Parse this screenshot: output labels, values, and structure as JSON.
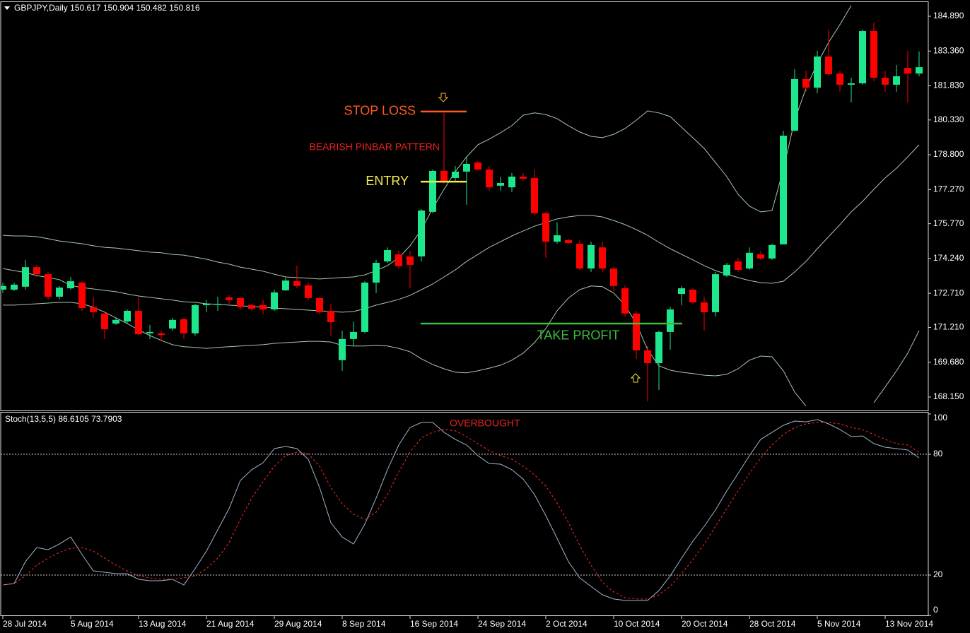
{
  "chart_data": [
    {
      "type": "candlestick",
      "title": "GBPJPY,Daily  150.617 150.904 150.482 150.816",
      "categories": [
        "28 Jul 2014",
        null,
        null,
        null,
        null,
        null,
        "5 Aug 2014",
        null,
        null,
        null,
        null,
        null,
        "13 Aug 2014",
        null,
        null,
        null,
        null,
        null,
        "21 Aug 2014",
        null,
        null,
        null,
        null,
        null,
        "29 Aug 2014",
        null,
        null,
        null,
        null,
        null,
        "8 Sep 2014",
        null,
        null,
        null,
        null,
        null,
        "16 Sep 2014",
        null,
        null,
        null,
        null,
        null,
        "24 Sep 2014",
        null,
        null,
        null,
        null,
        null,
        "2 Oct 2014",
        null,
        null,
        null,
        null,
        null,
        "10 Oct 2014",
        null,
        null,
        null,
        null,
        null,
        "20 Oct 2014",
        null,
        null,
        null,
        null,
        null,
        "28 Oct 2014",
        null,
        null,
        null,
        null,
        null,
        "5 Nov 2014",
        null,
        null,
        null,
        null,
        null,
        "13 Nov 2014",
        null,
        null,
        null
      ],
      "up_color": "#1de68c",
      "down_color": "#ff0000",
      "ohlc": [
        [
          172.87,
          173.18,
          172.72,
          173.03
        ],
        [
          172.87,
          173.18,
          172.81,
          173.09
        ],
        [
          173.0,
          174.18,
          172.87,
          173.86
        ],
        [
          173.86,
          173.96,
          173.43,
          173.55
        ],
        [
          173.55,
          173.65,
          172.44,
          172.56
        ],
        [
          172.56,
          173.03,
          172.44,
          172.96
        ],
        [
          172.93,
          173.43,
          172.87,
          173.24
        ],
        [
          173.18,
          173.24,
          171.94,
          172.06
        ],
        [
          172.1,
          172.56,
          171.63,
          171.88
        ],
        [
          171.82,
          171.94,
          170.7,
          171.13
        ],
        [
          171.38,
          171.63,
          171.32,
          171.54
        ],
        [
          171.47,
          172.0,
          171.38,
          171.94
        ],
        [
          171.94,
          172.56,
          170.85,
          170.91
        ],
        [
          170.95,
          171.32,
          170.7,
          171.01
        ],
        [
          170.95,
          171.07,
          170.6,
          170.88
        ],
        [
          171.16,
          171.63,
          171.07,
          171.54
        ],
        [
          171.57,
          171.63,
          170.7,
          170.95
        ],
        [
          170.95,
          172.25,
          170.85,
          172.19
        ],
        [
          172.19,
          172.41,
          171.88,
          172.25
        ],
        [
          172.25,
          172.56,
          171.94,
          172.25
        ],
        [
          172.53,
          172.62,
          172.25,
          172.41
        ],
        [
          172.5,
          172.56,
          172.0,
          172.1
        ],
        [
          172.19,
          172.25,
          171.94,
          172.03
        ],
        [
          172.19,
          172.41,
          171.78,
          172.0
        ],
        [
          172.0,
          172.87,
          171.94,
          172.75
        ],
        [
          172.84,
          173.4,
          172.81,
          173.27
        ],
        [
          173.24,
          173.93,
          172.93,
          173.03
        ],
        [
          173.06,
          173.18,
          172.41,
          172.5
        ],
        [
          172.5,
          172.56,
          171.78,
          171.88
        ],
        [
          171.94,
          172.25,
          170.85,
          171.44
        ],
        [
          169.77,
          171.07,
          169.3,
          170.7
        ],
        [
          170.7,
          171.47,
          170.39,
          171.01
        ],
        [
          171.01,
          173.24,
          170.95,
          173.18
        ],
        [
          173.18,
          174.18,
          172.72,
          174.05
        ],
        [
          174.11,
          174.73,
          174.05,
          174.61
        ],
        [
          174.42,
          174.58,
          173.8,
          173.9
        ],
        [
          174.33,
          174.58,
          172.93,
          173.96
        ],
        [
          174.33,
          176.41,
          174.11,
          176.35
        ],
        [
          176.29,
          178.15,
          176.23,
          178.09
        ],
        [
          178.09,
          180.64,
          177.53,
          177.62
        ],
        [
          177.78,
          178.31,
          177.65,
          178.06
        ],
        [
          178.06,
          178.71,
          176.6,
          178.4
        ],
        [
          178.46,
          178.52,
          178.09,
          178.15
        ],
        [
          178.15,
          178.31,
          177.22,
          177.37
        ],
        [
          177.44,
          177.84,
          177.22,
          177.56
        ],
        [
          177.37,
          178.0,
          177.16,
          177.84
        ],
        [
          177.84,
          178.0,
          177.65,
          177.75
        ],
        [
          177.78,
          178.15,
          176.13,
          176.23
        ],
        [
          176.23,
          176.29,
          174.27,
          174.98
        ],
        [
          174.98,
          175.82,
          174.89,
          175.26
        ],
        [
          175.05,
          175.11,
          174.86,
          174.92
        ],
        [
          174.89,
          175.05,
          173.74,
          173.8
        ],
        [
          173.8,
          174.98,
          173.65,
          174.83
        ],
        [
          174.73,
          174.98,
          173.65,
          173.8
        ],
        [
          173.8,
          173.86,
          172.81,
          173.03
        ],
        [
          172.93,
          173.06,
          171.69,
          171.82
        ],
        [
          171.82,
          171.94,
          169.83,
          170.2
        ],
        [
          170.2,
          170.39,
          167.96,
          169.64
        ],
        [
          169.64,
          171.07,
          168.46,
          171.01
        ],
        [
          171.01,
          172.1,
          170.23,
          172.0
        ],
        [
          172.68,
          173.03,
          172.19,
          172.93
        ],
        [
          172.87,
          172.93,
          172.25,
          172.31
        ],
        [
          172.31,
          172.56,
          171.07,
          171.88
        ],
        [
          171.88,
          173.65,
          171.69,
          173.55
        ],
        [
          173.49,
          174.05,
          173.43,
          173.96
        ],
        [
          174.11,
          174.27,
          173.65,
          173.74
        ],
        [
          173.8,
          174.73,
          173.74,
          174.49
        ],
        [
          174.42,
          174.58,
          174.18,
          174.24
        ],
        [
          174.24,
          174.89,
          174.18,
          174.83
        ],
        [
          174.86,
          179.86,
          174.86,
          179.64
        ],
        [
          179.86,
          182.56,
          179.83,
          182.13
        ],
        [
          182.13,
          182.5,
          181.57,
          181.75
        ],
        [
          181.75,
          183.37,
          181.5,
          183.12
        ],
        [
          183.12,
          184.3,
          182.25,
          182.34
        ],
        [
          182.37,
          182.5,
          181.57,
          181.88
        ],
        [
          181.88,
          182.19,
          181.1,
          181.94
        ],
        [
          181.94,
          184.3,
          181.88,
          184.24
        ],
        [
          184.24,
          184.61,
          182.03,
          182.19
        ],
        [
          182.19,
          182.5,
          181.57,
          181.88
        ],
        [
          181.88,
          182.75,
          181.57,
          182.25
        ],
        [
          182.62,
          183.37,
          181.1,
          182.37
        ],
        [
          182.37,
          183.34,
          182.25,
          182.65
        ]
      ],
      "series": [
        {
          "color": "#a8c8a8",
          "values": [
            175.26,
            175.23,
            175.23,
            175.2,
            175.11,
            175.01,
            174.95,
            174.89,
            174.8,
            174.73,
            174.7,
            174.64,
            174.58,
            174.52,
            174.49,
            174.42,
            174.39,
            174.3,
            174.21,
            174.08,
            173.99,
            173.86,
            173.77,
            173.68,
            173.55,
            173.43,
            173.4,
            173.37,
            173.34,
            173.37,
            173.4,
            173.43,
            173.52,
            173.71,
            173.93,
            174.27,
            174.8,
            175.51,
            176.44,
            177.28,
            178.06,
            178.71,
            179.24,
            179.49,
            179.77,
            180.08,
            180.54,
            180.64,
            180.57,
            180.39,
            180.08,
            179.8,
            179.61,
            179.55,
            179.7,
            179.95,
            180.32,
            180.73,
            180.64,
            180.48,
            180.01,
            179.55,
            179.08,
            178.46,
            177.84,
            177.06,
            176.54,
            176.29,
            176.35,
            178.15,
            180.32,
            181.72,
            182.81,
            183.74,
            184.52,
            185.36,
            null,
            null,
            null,
            null,
            null,
            null
          ]
        },
        {
          "color": "#a8c8a8",
          "values": [
            173.8,
            173.71,
            173.62,
            173.49,
            173.4,
            173.31,
            173.06,
            172.96,
            172.9,
            172.84,
            172.78,
            172.68,
            172.59,
            172.53,
            172.47,
            172.41,
            172.34,
            172.31,
            172.25,
            172.22,
            172.19,
            172.16,
            172.13,
            172.1,
            172.06,
            172.03,
            172.0,
            171.97,
            171.94,
            171.91,
            171.88,
            171.91,
            172.03,
            172.19,
            172.31,
            172.44,
            172.62,
            172.87,
            173.12,
            173.43,
            173.74,
            174.11,
            174.42,
            174.73,
            174.98,
            175.23,
            175.45,
            175.66,
            175.82,
            175.98,
            176.07,
            176.13,
            176.13,
            176.07,
            175.91,
            175.73,
            175.51,
            175.26,
            174.95,
            174.67,
            174.42,
            174.18,
            173.93,
            173.71,
            173.55,
            173.4,
            173.27,
            173.18,
            173.15,
            173.24,
            173.65,
            174.11,
            174.67,
            175.2,
            175.73,
            176.29,
            176.75,
            177.28,
            177.78,
            178.21,
            178.71,
            179.24
          ]
        },
        {
          "color": "#a8c8a8",
          "values": [
            172.19,
            172.19,
            172.22,
            172.25,
            172.28,
            172.31,
            172.31,
            172.25,
            172.1,
            171.88,
            171.63,
            171.38,
            171.1,
            170.85,
            170.64,
            170.45,
            170.36,
            170.33,
            170.29,
            170.33,
            170.36,
            170.39,
            170.42,
            170.45,
            170.51,
            170.54,
            170.57,
            170.6,
            170.6,
            170.57,
            170.42,
            170.39,
            170.39,
            170.42,
            170.39,
            170.29,
            170.14,
            169.83,
            169.58,
            169.39,
            169.24,
            169.21,
            169.3,
            169.42,
            169.55,
            169.77,
            170.08,
            170.54,
            171.16,
            171.94,
            172.5,
            172.87,
            173.03,
            173.0,
            172.72,
            172.19,
            171.38,
            170.23,
            169.52,
            169.33,
            169.24,
            169.18,
            169.11,
            169.08,
            169.15,
            169.39,
            169.77,
            169.95,
            169.92,
            169.3,
            168.37,
            167.75,
            null,
            null,
            null,
            null,
            null,
            167.9,
            168.59,
            169.3,
            170.08,
            171.07
          ]
        }
      ],
      "ylim": [
        167.59,
        185.48
      ],
      "yticks": [
        {
          "value": 184.89,
          "label": "184.890"
        },
        {
          "value": 183.36,
          "label": "183.360"
        },
        {
          "value": 181.83,
          "label": "181.830"
        },
        {
          "value": 180.33,
          "label": "180.330"
        },
        {
          "value": 178.8,
          "label": "178.800"
        },
        {
          "value": 177.27,
          "label": "177.270"
        },
        {
          "value": 175.77,
          "label": "175.770"
        },
        {
          "value": 174.24,
          "label": "174.240"
        },
        {
          "value": 172.71,
          "label": "172.710"
        },
        {
          "value": 171.21,
          "label": "171.210"
        },
        {
          "value": 169.68,
          "label": "169.680"
        },
        {
          "value": 168.15,
          "label": "168.150"
        }
      ],
      "annotations": [
        {
          "text": "STOP LOSS",
          "color": "#ff5a1e",
          "level": 180.7
        },
        {
          "text": "BEARISH PINBAR PATTERN",
          "color": "#e8221e"
        },
        {
          "text": "ENTRY",
          "color": "#f5ec4a",
          "level": 177.62
        },
        {
          "text": "TAKE PROFIT",
          "color": "#3cbd3c",
          "level": 171.38
        }
      ]
    },
    {
      "type": "line",
      "title": "Stoch(13,5,5) 86.6105 73.7903",
      "series": [
        {
          "color": "#a0b6cc",
          "dash": false,
          "values": [
            15.1,
            15.8,
            26.7,
            33.7,
            32.6,
            35.4,
            38.9,
            30.2,
            22.1,
            21.4,
            20.7,
            20.7,
            17.9,
            17.2,
            17.2,
            17.9,
            15.1,
            23.2,
            31.9,
            42.5,
            53.0,
            67.0,
            72.3,
            75.8,
            82.8,
            83.9,
            82.8,
            77.5,
            63.5,
            46.0,
            38.9,
            35.4,
            45.3,
            58.2,
            72.3,
            84.6,
            93.3,
            95.8,
            95.8,
            90.9,
            87.4,
            84.6,
            79.3,
            75.4,
            75.1,
            72.3,
            67.7,
            60.0,
            49.5,
            38.2,
            26.7,
            18.6,
            14.4,
            10.2,
            8.1,
            7.4,
            7.4,
            7.4,
            12.3,
            19.6,
            28.4,
            36.8,
            44.2,
            52.3,
            61.8,
            70.5,
            79.3,
            87.4,
            90.9,
            94.4,
            96.5,
            96.1,
            97.2,
            95.1,
            92.3,
            88.8,
            89.1,
            85.3,
            83.5,
            82.8,
            82.1,
            78.2
          ]
        },
        {
          "color": "#ff2a2a",
          "dash": true,
          "values": [
            15.1,
            15.8,
            19.6,
            24.9,
            28.4,
            31.2,
            33.3,
            33.7,
            31.9,
            28.4,
            24.9,
            22.1,
            19.6,
            18.6,
            17.9,
            17.9,
            18.6,
            19.6,
            23.2,
            28.4,
            36.1,
            47.7,
            58.2,
            66.3,
            74.0,
            79.3,
            81.1,
            80.4,
            74.0,
            63.5,
            55.4,
            50.2,
            47.7,
            51.2,
            60.0,
            71.2,
            81.1,
            88.1,
            90.9,
            92.3,
            91.6,
            88.8,
            85.3,
            81.8,
            79.3,
            77.5,
            74.0,
            69.8,
            64.2,
            55.8,
            46.0,
            34.7,
            24.9,
            16.5,
            11.6,
            8.8,
            8.1,
            8.1,
            10.2,
            14.4,
            20.7,
            27.7,
            35.4,
            44.2,
            53.0,
            61.8,
            70.5,
            78.2,
            84.6,
            89.8,
            93.3,
            95.1,
            95.8,
            95.8,
            95.1,
            93.3,
            92.3,
            89.8,
            87.4,
            85.3,
            84.6,
            81.1
          ]
        }
      ],
      "ylim": [
        0,
        100.7
      ],
      "yticks": [
        0,
        20,
        80,
        100
      ],
      "levels": [
        20,
        80
      ],
      "annotations": [
        {
          "text": "OVERBOUGHT",
          "color": "#e8221e"
        }
      ]
    }
  ]
}
